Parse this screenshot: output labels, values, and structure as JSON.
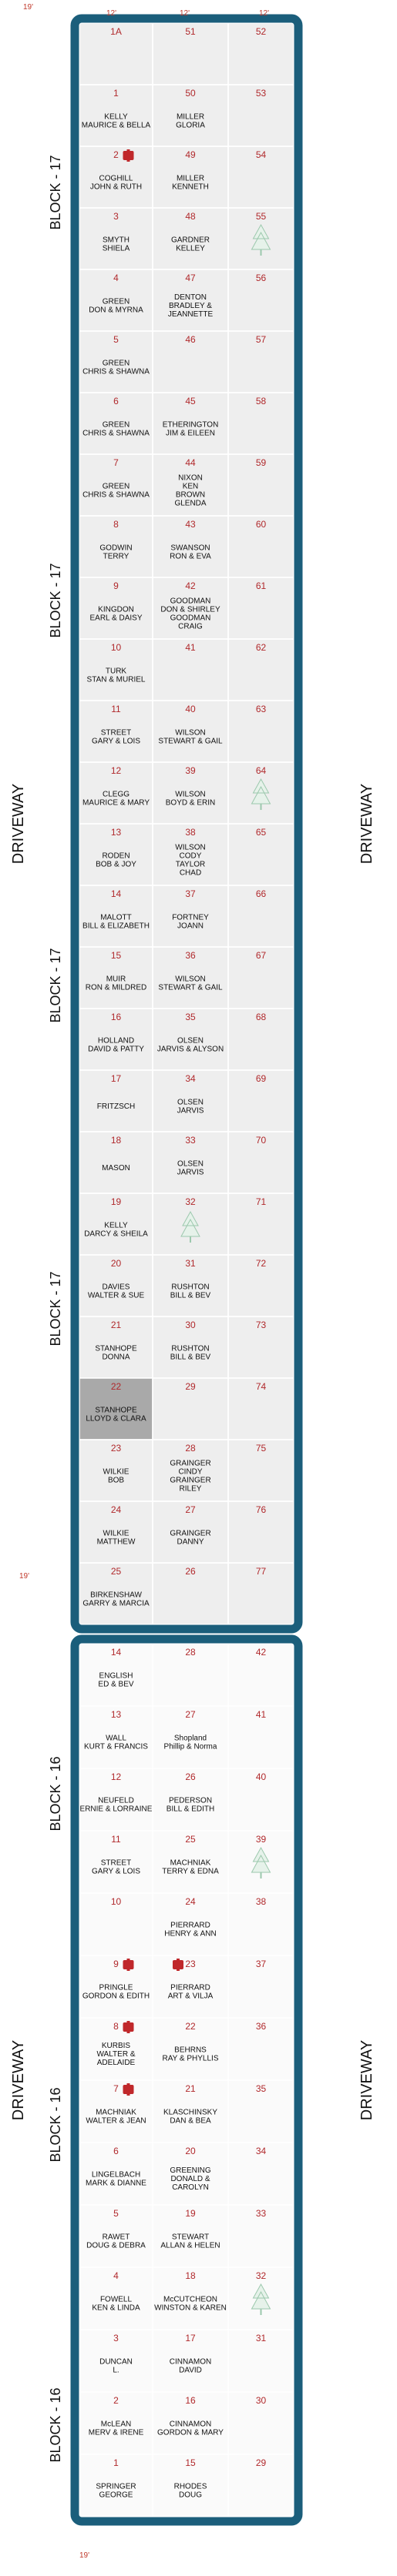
{
  "dimensions": {
    "top": "19'",
    "columns": [
      "12'",
      "12'",
      "12'"
    ],
    "middle": "19'",
    "bottom": "19'"
  },
  "driveway": "DRIVEWAY",
  "blocks": [
    {
      "label": "BLOCK - 17",
      "rows": [
        [
          {
            "number": "1A"
          },
          {
            "number": "51"
          },
          {
            "number": "52"
          }
        ],
        [
          {
            "number": "1",
            "names": [
              "KELLY",
              "MAURICE & BELLA"
            ]
          },
          {
            "number": "50",
            "names": [
              "MILLER",
              "GLORIA"
            ]
          },
          {
            "number": "53"
          }
        ],
        [
          {
            "number": "2",
            "icon": "cross",
            "names": [
              "COGHILL",
              "JOHN & RUTH"
            ]
          },
          {
            "number": "49",
            "names": [
              "MILLER",
              "KENNETH"
            ]
          },
          {
            "number": "54"
          }
        ],
        [
          {
            "number": "3",
            "names": [
              "SMYTH",
              "SHIELA"
            ]
          },
          {
            "number": "48",
            "names": [
              "GARDNER",
              "KELLEY"
            ]
          },
          {
            "number": "55",
            "icon": "tree"
          }
        ],
        [
          {
            "number": "4",
            "names": [
              "GREEN",
              "DON & MYRNA"
            ]
          },
          {
            "number": "47",
            "names": [
              "DENTON",
              "BRADLEY &",
              "JEANNETTE"
            ]
          },
          {
            "number": "56"
          }
        ],
        [
          {
            "number": "5",
            "names": [
              "GREEN",
              "CHRIS & SHAWNA"
            ]
          },
          {
            "number": "46"
          },
          {
            "number": "57"
          }
        ],
        [
          {
            "number": "6",
            "names": [
              "GREEN",
              "CHRIS & SHAWNA"
            ]
          },
          {
            "number": "45",
            "names": [
              "ETHERINGTON",
              "JIM & EILEEN"
            ]
          },
          {
            "number": "58"
          }
        ],
        [
          {
            "number": "7",
            "names": [
              "GREEN",
              "CHRIS & SHAWNA"
            ]
          },
          {
            "number": "44",
            "names": [
              "NIXON",
              "KEN",
              "BROWN",
              "GLENDA"
            ]
          },
          {
            "number": "59"
          }
        ],
        [
          {
            "number": "8",
            "names": [
              "GODWIN",
              "TERRY"
            ]
          },
          {
            "number": "43",
            "names": [
              "SWANSON",
              "RON & EVA"
            ]
          },
          {
            "number": "60"
          }
        ],
        [
          {
            "number": "9",
            "names": [
              "KINGDON",
              "EARL & DAISY"
            ]
          },
          {
            "number": "42",
            "names": [
              "GOODMAN",
              "DON & SHIRLEY",
              "GOODMAN",
              "CRAIG"
            ]
          },
          {
            "number": "61"
          }
        ],
        [
          {
            "number": "10",
            "names": [
              "TURK",
              "STAN & MURIEL"
            ]
          },
          {
            "number": "41"
          },
          {
            "number": "62"
          }
        ],
        [
          {
            "number": "11",
            "names": [
              "STREET",
              "GARY & LOIS"
            ]
          },
          {
            "number": "40",
            "names": [
              "WILSON",
              "STEWART & GAIL"
            ]
          },
          {
            "number": "63"
          }
        ],
        [
          {
            "number": "12",
            "names": [
              "CLEGG",
              "MAURICE & MARY"
            ]
          },
          {
            "number": "39",
            "names": [
              "WILSON",
              "BOYD & ERIN"
            ]
          },
          {
            "number": "64",
            "icon": "tree"
          }
        ],
        [
          {
            "number": "13",
            "names": [
              "RODEN",
              "BOB & JOY"
            ]
          },
          {
            "number": "38",
            "names": [
              "WILSON",
              "CODY",
              "TAYLOR",
              "CHAD"
            ]
          },
          {
            "number": "65"
          }
        ],
        [
          {
            "number": "14",
            "names": [
              "MALOTT",
              "BILL & ELIZABETH"
            ]
          },
          {
            "number": "37",
            "names": [
              "FORTNEY",
              "JOANN"
            ]
          },
          {
            "number": "66"
          }
        ],
        [
          {
            "number": "15",
            "names": [
              "MUIR",
              "RON & MILDRED"
            ]
          },
          {
            "number": "36",
            "names": [
              "WILSON",
              "STEWART & GAIL"
            ]
          },
          {
            "number": "67"
          }
        ],
        [
          {
            "number": "16",
            "names": [
              "HOLLAND",
              "DAVID & PATTY"
            ]
          },
          {
            "number": "35",
            "names": [
              "OLSEN",
              "JARVIS & ALYSON"
            ]
          },
          {
            "number": "68"
          }
        ],
        [
          {
            "number": "17",
            "names": [
              "FRITZSCH"
            ]
          },
          {
            "number": "34",
            "names": [
              "OLSEN",
              "JARVIS"
            ]
          },
          {
            "number": "69"
          }
        ],
        [
          {
            "number": "18",
            "names": [
              "MASON"
            ]
          },
          {
            "number": "33",
            "names": [
              "OLSEN",
              "JARVIS"
            ]
          },
          {
            "number": "70"
          }
        ],
        [
          {
            "number": "19",
            "names": [
              "KELLY",
              "DARCY & SHEILA"
            ]
          },
          {
            "number": "32",
            "icon": "tree"
          },
          {
            "number": "71"
          }
        ],
        [
          {
            "number": "20",
            "names": [
              "DAVIES",
              "WALTER & SUE"
            ]
          },
          {
            "number": "31",
            "names": [
              "RUSHTON",
              "BILL & BEV"
            ]
          },
          {
            "number": "72"
          }
        ],
        [
          {
            "number": "21",
            "names": [
              "STANHOPE",
              "DONNA"
            ]
          },
          {
            "number": "30",
            "names": [
              "RUSHTON",
              "BILL & BEV"
            ]
          },
          {
            "number": "73"
          }
        ],
        [
          {
            "number": "22",
            "highlight": true,
            "names": [
              "STANHOPE",
              "LLOYD & CLARA"
            ]
          },
          {
            "number": "29"
          },
          {
            "number": "74"
          }
        ],
        [
          {
            "number": "23",
            "names": [
              "WILKIE",
              "BOB"
            ]
          },
          {
            "number": "28",
            "names": [
              "GRAINGER",
              "CINDY",
              "GRAINGER",
              "RILEY"
            ]
          },
          {
            "number": "75"
          }
        ],
        [
          {
            "number": "24",
            "names": [
              "WILKIE",
              "MATTHEW"
            ]
          },
          {
            "number": "27",
            "names": [
              "GRAINGER",
              "DANNY"
            ]
          },
          {
            "number": "76"
          }
        ],
        [
          {
            "number": "25",
            "names": [
              "BIRKENSHAW",
              "GARRY & MARCIA"
            ]
          },
          {
            "number": "26"
          },
          {
            "number": "77"
          }
        ]
      ]
    },
    {
      "label": "BLOCK - 16",
      "rows": [
        [
          {
            "number": "14",
            "names": [
              "ENGLISH",
              "ED & BEV"
            ]
          },
          {
            "number": "28"
          },
          {
            "number": "42"
          }
        ],
        [
          {
            "number": "13",
            "names": [
              "WALL",
              "KURT & FRANCIS"
            ]
          },
          {
            "number": "27",
            "names": [
              "Shopland",
              "Phillip & Norma"
            ]
          },
          {
            "number": "41"
          }
        ],
        [
          {
            "number": "12",
            "names": [
              "NEUFELD",
              "ERNIE & LORRAINE"
            ]
          },
          {
            "number": "26",
            "names": [
              "PEDERSON",
              "BILL & EDITH"
            ]
          },
          {
            "number": "40"
          }
        ],
        [
          {
            "number": "11",
            "names": [
              "STREET",
              "GARY & LOIS"
            ]
          },
          {
            "number": "25",
            "names": [
              "MACHNIAK",
              "TERRY & EDNA"
            ]
          },
          {
            "number": "39",
            "icon": "tree"
          }
        ],
        [
          {
            "number": "10"
          },
          {
            "number": "24",
            "names": [
              "PIERRARD",
              "HENRY & ANN"
            ]
          },
          {
            "number": "38"
          }
        ],
        [
          {
            "number": "9",
            "icon": "cross",
            "names": [
              "PRINGLE",
              "GORDON & EDITH"
            ]
          },
          {
            "number": "23",
            "icon": "cross",
            "names": [
              "PIERRARD",
              "ART & VILJA"
            ]
          },
          {
            "number": "37"
          }
        ],
        [
          {
            "number": "8",
            "icon": "cross",
            "names": [
              "KURBIS",
              "WALTER &",
              "ADELAIDE"
            ]
          },
          {
            "number": "22",
            "names": [
              "BEHRNS",
              "RAY & PHYLLIS"
            ]
          },
          {
            "number": "36"
          }
        ],
        [
          {
            "number": "7",
            "icon": "cross",
            "names": [
              "MACHNIAK",
              "WALTER & JEAN"
            ]
          },
          {
            "number": "21",
            "names": [
              "KLASCHINSKY",
              "DAN & BEA"
            ]
          },
          {
            "number": "35"
          }
        ],
        [
          {
            "number": "6",
            "names": [
              "LINGELBACH",
              "MARK & DIANNE"
            ]
          },
          {
            "number": "20",
            "names": [
              "GREENING",
              "DONALD &",
              "CAROLYN"
            ]
          },
          {
            "number": "34"
          }
        ],
        [
          {
            "number": "5",
            "names": [
              "RAWET",
              "DOUG & DEBRA"
            ]
          },
          {
            "number": "19",
            "names": [
              "STEWART",
              "ALLAN & HELEN"
            ]
          },
          {
            "number": "33"
          }
        ],
        [
          {
            "number": "4",
            "names": [
              "FOWELL",
              "KEN & LINDA"
            ]
          },
          {
            "number": "18",
            "names": [
              "McCUTCHEON",
              "WINSTON & KAREN"
            ]
          },
          {
            "number": "32",
            "icon": "tree"
          }
        ],
        [
          {
            "number": "3",
            "names": [
              "DUNCAN",
              "L."
            ]
          },
          {
            "number": "17",
            "names": [
              "CINNAMON",
              "DAVID"
            ]
          },
          {
            "number": "31"
          }
        ],
        [
          {
            "number": "2",
            "names": [
              "McLEAN",
              "MERV & IRENE"
            ]
          },
          {
            "number": "16",
            "names": [
              "CINNAMON",
              "GORDON & MARY"
            ]
          },
          {
            "number": "30"
          }
        ],
        [
          {
            "number": "1",
            "names": [
              "SPRINGER",
              "GEORGE"
            ]
          },
          {
            "number": "15",
            "names": [
              "RHODES",
              "DOUG"
            ]
          },
          {
            "number": "29"
          }
        ]
      ]
    }
  ]
}
